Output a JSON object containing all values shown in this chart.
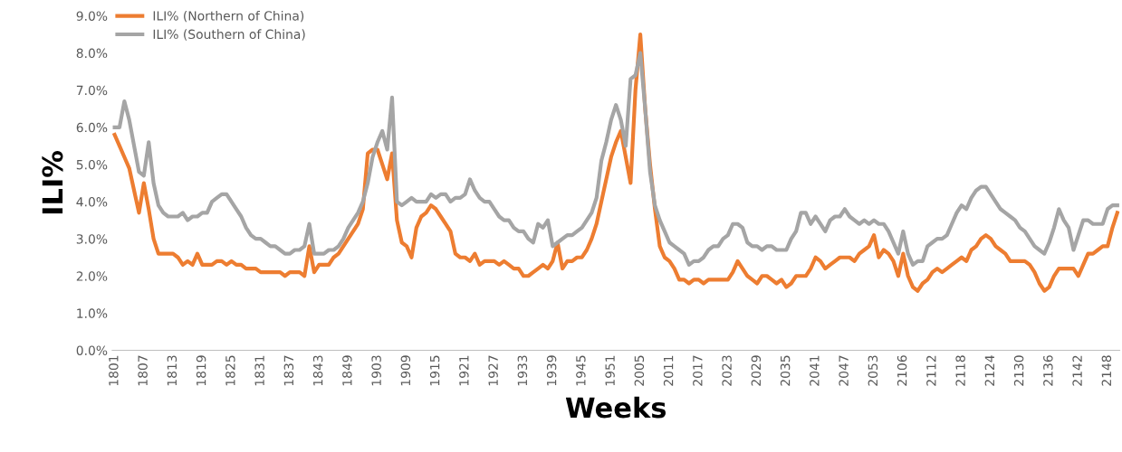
{
  "chart_data": {
    "type": "line",
    "xlabel": "Weeks",
    "ylabel": "ILI%",
    "categories": [
      "1801",
      null,
      null,
      null,
      null,
      null,
      "1807",
      null,
      null,
      null,
      null,
      null,
      "1813",
      null,
      null,
      null,
      null,
      null,
      "1819",
      null,
      null,
      null,
      null,
      null,
      "1825",
      null,
      null,
      null,
      null,
      null,
      "1831",
      null,
      null,
      null,
      null,
      null,
      "1837",
      null,
      null,
      null,
      null,
      null,
      "1843",
      null,
      null,
      null,
      null,
      null,
      "1849",
      null,
      null,
      null,
      null,
      null,
      "1903",
      null,
      null,
      null,
      null,
      null,
      "1909",
      null,
      null,
      null,
      null,
      null,
      "1915",
      null,
      null,
      null,
      null,
      null,
      "1921",
      null,
      null,
      null,
      null,
      null,
      "1927",
      null,
      null,
      null,
      null,
      null,
      "1933",
      null,
      null,
      null,
      null,
      null,
      "1939",
      null,
      null,
      null,
      null,
      null,
      "1945",
      null,
      null,
      null,
      null,
      null,
      "1951",
      null,
      null,
      null,
      null,
      null,
      "2005",
      null,
      null,
      null,
      null,
      null,
      "2011",
      null,
      null,
      null,
      null,
      null,
      "2017",
      null,
      null,
      null,
      null,
      null,
      "2023",
      null,
      null,
      null,
      null,
      null,
      "2029",
      null,
      null,
      null,
      null,
      null,
      "2035",
      null,
      null,
      null,
      null,
      null,
      "2041",
      null,
      null,
      null,
      null,
      null,
      "2047",
      null,
      null,
      null,
      null,
      null,
      "2053",
      null,
      null,
      null,
      null,
      null,
      "2106",
      null,
      null,
      null,
      null,
      null,
      "2112",
      null,
      null,
      null,
      null,
      null,
      "2118",
      null,
      null,
      null,
      null,
      null,
      "2124",
      null,
      null,
      null,
      null,
      null,
      "2130",
      null,
      null,
      null,
      null,
      null,
      "2136",
      null,
      null,
      null,
      null,
      null,
      "2142",
      null,
      null,
      null,
      null,
      null,
      "2148",
      null,
      null
    ],
    "series": [
      {
        "name": "ILI% (Northern of China)",
        "color": "#ed7d31",
        "values": [
          5.8,
          5.5,
          5.2,
          4.9,
          4.3,
          3.7,
          4.5,
          3.8,
          3.0,
          2.6,
          2.6,
          2.6,
          2.6,
          2.5,
          2.3,
          2.4,
          2.3,
          2.6,
          2.3,
          2.3,
          2.3,
          2.4,
          2.4,
          2.3,
          2.4,
          2.3,
          2.3,
          2.2,
          2.2,
          2.2,
          2.1,
          2.1,
          2.1,
          2.1,
          2.1,
          2.0,
          2.1,
          2.1,
          2.1,
          2.0,
          2.8,
          2.1,
          2.3,
          2.3,
          2.3,
          2.5,
          2.6,
          2.8,
          3.0,
          3.2,
          3.4,
          3.8,
          5.3,
          5.4,
          5.4,
          5.0,
          4.6,
          5.3,
          3.5,
          2.9,
          2.8,
          2.5,
          3.3,
          3.6,
          3.7,
          3.9,
          3.8,
          3.6,
          3.4,
          3.2,
          2.6,
          2.5,
          2.5,
          2.4,
          2.6,
          2.3,
          2.4,
          2.4,
          2.4,
          2.3,
          2.4,
          2.3,
          2.2,
          2.2,
          2.0,
          2.0,
          2.1,
          2.2,
          2.3,
          2.2,
          2.4,
          2.9,
          2.2,
          2.4,
          2.4,
          2.5,
          2.5,
          2.7,
          3.0,
          3.4,
          4.0,
          4.6,
          5.2,
          5.6,
          5.9,
          5.2,
          4.5,
          7.0,
          8.5,
          6.5,
          5.0,
          3.8,
          2.8,
          2.5,
          2.4,
          2.2,
          1.9,
          1.9,
          1.8,
          1.9,
          1.9,
          1.8,
          1.9,
          1.9,
          1.9,
          1.9,
          1.9,
          2.1,
          2.4,
          2.2,
          2.0,
          1.9,
          1.8,
          2.0,
          2.0,
          1.9,
          1.8,
          1.9,
          1.7,
          1.8,
          2.0,
          2.0,
          2.0,
          2.2,
          2.5,
          2.4,
          2.2,
          2.3,
          2.4,
          2.5,
          2.5,
          2.5,
          2.4,
          2.6,
          2.7,
          2.8,
          3.1,
          2.5,
          2.7,
          2.6,
          2.4,
          2.0,
          2.6,
          2.0,
          1.7,
          1.6,
          1.8,
          1.9,
          2.1,
          2.2,
          2.1,
          2.2,
          2.3,
          2.4,
          2.5,
          2.4,
          2.7,
          2.8,
          3.0,
          3.1,
          3.0,
          2.8,
          2.7,
          2.6,
          2.4,
          2.4,
          2.4,
          2.4,
          2.3,
          2.1,
          1.8,
          1.6,
          1.7,
          2.0,
          2.2,
          2.2,
          2.2,
          2.2,
          2.0,
          2.3,
          2.6,
          2.6,
          2.7,
          2.8,
          2.8,
          3.3,
          3.7
        ]
      },
      {
        "name": "ILI% (Southern of China)",
        "color": "#a5a5a5",
        "values": [
          6.0,
          6.0,
          6.7,
          6.2,
          5.5,
          4.8,
          4.7,
          5.6,
          4.5,
          3.9,
          3.7,
          3.6,
          3.6,
          3.6,
          3.7,
          3.5,
          3.6,
          3.6,
          3.7,
          3.7,
          4.0,
          4.1,
          4.2,
          4.2,
          4.0,
          3.8,
          3.6,
          3.3,
          3.1,
          3.0,
          3.0,
          2.9,
          2.8,
          2.8,
          2.7,
          2.6,
          2.6,
          2.7,
          2.7,
          2.8,
          3.4,
          2.6,
          2.6,
          2.6,
          2.7,
          2.7,
          2.8,
          3.0,
          3.3,
          3.5,
          3.7,
          4.0,
          4.5,
          5.2,
          5.6,
          5.9,
          5.4,
          6.8,
          4.0,
          3.9,
          4.0,
          4.1,
          4.0,
          4.0,
          4.0,
          4.2,
          4.1,
          4.2,
          4.2,
          4.0,
          4.1,
          4.1,
          4.2,
          4.6,
          4.3,
          4.1,
          4.0,
          4.0,
          3.8,
          3.6,
          3.5,
          3.5,
          3.3,
          3.2,
          3.2,
          3.0,
          2.9,
          3.4,
          3.3,
          3.5,
          2.8,
          2.9,
          3.0,
          3.1,
          3.1,
          3.2,
          3.3,
          3.5,
          3.7,
          4.1,
          5.1,
          5.6,
          6.2,
          6.6,
          6.2,
          5.5,
          7.3,
          7.4,
          8.0,
          6.5,
          4.8,
          3.9,
          3.5,
          3.2,
          2.9,
          2.8,
          2.7,
          2.6,
          2.3,
          2.4,
          2.4,
          2.5,
          2.7,
          2.8,
          2.8,
          3.0,
          3.1,
          3.4,
          3.4,
          3.3,
          2.9,
          2.8,
          2.8,
          2.7,
          2.8,
          2.8,
          2.7,
          2.7,
          2.7,
          3.0,
          3.2,
          3.7,
          3.7,
          3.4,
          3.6,
          3.4,
          3.2,
          3.5,
          3.6,
          3.6,
          3.8,
          3.6,
          3.5,
          3.4,
          3.5,
          3.4,
          3.5,
          3.4,
          3.4,
          3.2,
          2.9,
          2.6,
          3.2,
          2.6,
          2.3,
          2.4,
          2.4,
          2.8,
          2.9,
          3.0,
          3.0,
          3.1,
          3.4,
          3.7,
          3.9,
          3.8,
          4.1,
          4.3,
          4.4,
          4.4,
          4.2,
          4.0,
          3.8,
          3.7,
          3.6,
          3.5,
          3.3,
          3.2,
          3.0,
          2.8,
          2.7,
          2.6,
          2.9,
          3.3,
          3.8,
          3.5,
          3.3,
          2.7,
          3.1,
          3.5,
          3.5,
          3.4,
          3.4,
          3.4,
          3.8,
          3.9,
          3.9
        ]
      }
    ],
    "ylim": [
      0,
      9
    ],
    "yticks": [
      {
        "value": 0,
        "label": "0.0%"
      },
      {
        "value": 1,
        "label": "1.0%"
      },
      {
        "value": 2,
        "label": "2.0%"
      },
      {
        "value": 3,
        "label": "3.0%"
      },
      {
        "value": 4,
        "label": "4.0%"
      },
      {
        "value": 5,
        "label": "5.0%"
      },
      {
        "value": 6,
        "label": "6.0%"
      },
      {
        "value": 7,
        "label": "7.0%"
      },
      {
        "value": 8,
        "label": "8.0%"
      },
      {
        "value": 9,
        "label": "9.0%"
      }
    ],
    "legend": "top left",
    "grid": false,
    "marker": "none",
    "line_style": "solid"
  }
}
